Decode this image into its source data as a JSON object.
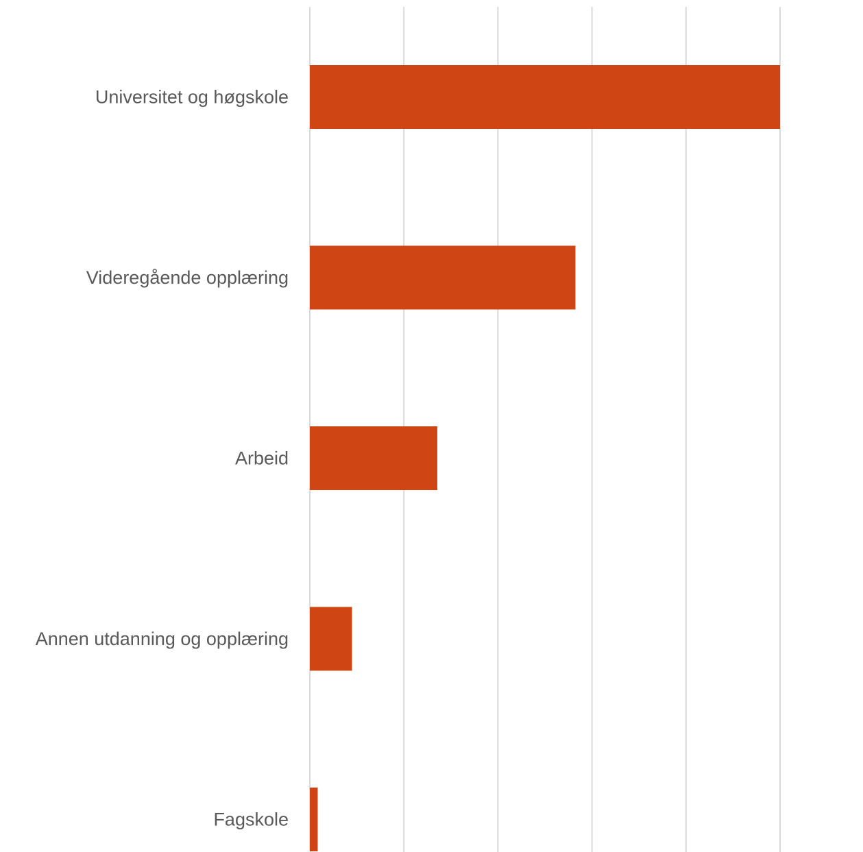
{
  "chart_data": {
    "type": "bar",
    "orientation": "horizontal",
    "categories": [
      "Universitet og høgskole",
      "Videregående opplæring",
      "Arbeid",
      "Annen utdanning og opplæring",
      "Fagskole"
    ],
    "values": [
      100,
      56.5,
      27.1,
      9.0,
      1.7
    ],
    "xlim": [
      0,
      100
    ],
    "x_gridline_count": 6,
    "grid": true,
    "legend": "none",
    "title": "",
    "xlabel": "",
    "ylabel": "",
    "colors": {
      "bar": "#cf4514",
      "grid": "#d9d9d9",
      "label": "#595959"
    }
  }
}
